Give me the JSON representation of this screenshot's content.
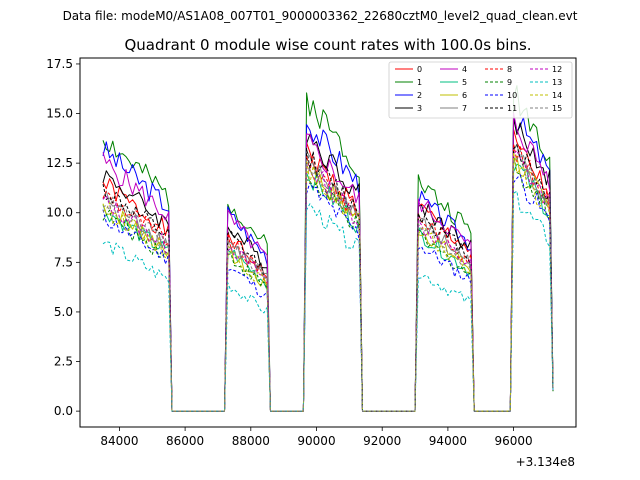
{
  "chart_data": {
    "type": "line",
    "suptitle": "Data file: modeM0/AS1A08_007T01_9000003362_22680cztM0_level2_quad_clean.evt",
    "title": "Quadrant 0 module wise count rates with 100.0s bins.",
    "xlabel": "",
    "ylabel": "",
    "x_offset_label": "+3.134e8",
    "xlim": [
      82800,
      97900
    ],
    "ylim": [
      -0.8,
      17.8
    ],
    "x_ticks": [
      84000,
      86000,
      88000,
      90000,
      92000,
      94000,
      96000
    ],
    "x_tick_labels": [
      "84000",
      "86000",
      "88000",
      "90000",
      "92000",
      "94000",
      "96000"
    ],
    "y_ticks": [
      0,
      2.5,
      5,
      7.5,
      10,
      12.5,
      15,
      17.5
    ],
    "y_tick_labels": [
      "0.0",
      "2.5",
      "5.0",
      "7.5",
      "10.0",
      "12.5",
      "15.0",
      "17.5"
    ],
    "legend_location": "top-right",
    "segments": [
      {
        "start": 83500,
        "end": 85500
      },
      {
        "start": 87300,
        "end": 88500
      },
      {
        "start": 89700,
        "end": 91300
      },
      {
        "start": 93100,
        "end": 94700
      },
      {
        "start": 96000,
        "end": 97200
      }
    ],
    "series": [
      {
        "name": "0",
        "color": "#ff0000",
        "dashed": false,
        "levels": [
          11.5,
          8.8,
          13.0,
          10.3,
          13.6
        ]
      },
      {
        "name": "1",
        "color": "#008000",
        "dashed": false,
        "levels": [
          13.8,
          10.6,
          15.8,
          11.6,
          16.2
        ]
      },
      {
        "name": "2",
        "color": "#0000ff",
        "dashed": false,
        "levels": [
          13.2,
          10.0,
          14.6,
          10.8,
          15.0
        ]
      },
      {
        "name": "3",
        "color": "#000000",
        "dashed": false,
        "levels": [
          12.0,
          9.4,
          14.0,
          10.5,
          14.6
        ]
      },
      {
        "name": "4",
        "color": "#bf00bf",
        "dashed": false,
        "levels": [
          12.6,
          9.8,
          13.6,
          10.6,
          14.6
        ]
      },
      {
        "name": "5",
        "color": "#00bf80",
        "dashed": false,
        "levels": [
          10.2,
          8.2,
          12.0,
          9.0,
          12.6
        ]
      },
      {
        "name": "6",
        "color": "#bfbf00",
        "dashed": false,
        "levels": [
          10.4,
          8.0,
          12.3,
          9.2,
          12.8
        ]
      },
      {
        "name": "7",
        "color": "#808080",
        "dashed": false,
        "levels": [
          10.8,
          8.6,
          12.6,
          9.6,
          13.2
        ]
      },
      {
        "name": "8",
        "color": "#ff0000",
        "dashed": true,
        "levels": [
          11.0,
          8.6,
          12.7,
          9.8,
          13.3
        ]
      },
      {
        "name": "9",
        "color": "#008000",
        "dashed": true,
        "levels": [
          10.0,
          7.9,
          11.8,
          8.8,
          12.5
        ]
      },
      {
        "name": "10",
        "color": "#0000ff",
        "dashed": true,
        "levels": [
          9.8,
          7.4,
          11.4,
          8.4,
          12.0
        ]
      },
      {
        "name": "11",
        "color": "#000000",
        "dashed": true,
        "levels": [
          11.2,
          8.9,
          12.9,
          10.0,
          13.5
        ]
      },
      {
        "name": "12",
        "color": "#bf00bf",
        "dashed": true,
        "levels": [
          10.6,
          8.4,
          12.4,
          9.4,
          13.0
        ]
      },
      {
        "name": "13",
        "color": "#00bfbf",
        "dashed": true,
        "levels": [
          8.5,
          6.4,
          10.4,
          7.0,
          10.8
        ]
      },
      {
        "name": "14",
        "color": "#bfbf00",
        "dashed": true,
        "levels": [
          10.3,
          8.1,
          12.2,
          9.1,
          12.6
        ]
      },
      {
        "name": "15",
        "color": "#808080",
        "dashed": true,
        "levels": [
          10.7,
          8.5,
          12.5,
          9.4,
          13.1
        ]
      }
    ]
  }
}
